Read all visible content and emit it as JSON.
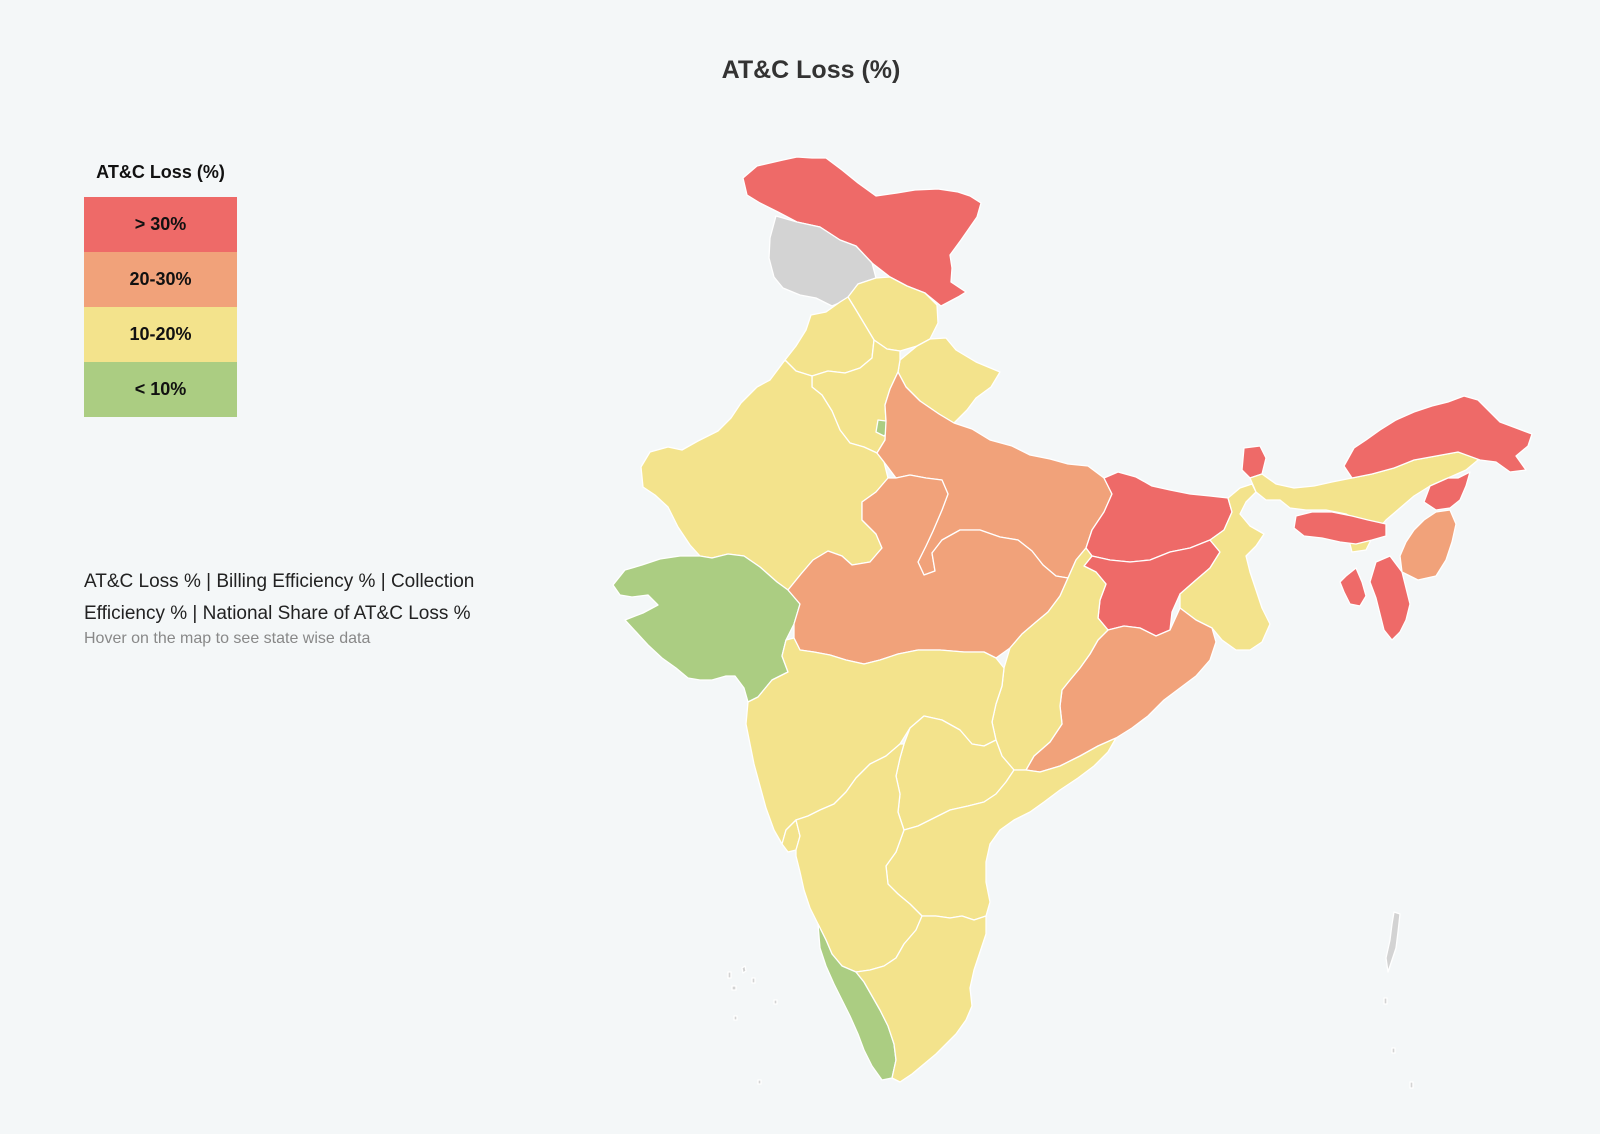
{
  "title": "AT&C Loss (%)",
  "legend": {
    "title": "AT&C Loss (%)",
    "items": [
      {
        "label": "> 30%",
        "color": "#ee6a68"
      },
      {
        "label": "20-30%",
        "color": "#f1a27a"
      },
      {
        "label": "10-20%",
        "color": "#f3e38c"
      },
      {
        "label": "< 10%",
        "color": "#abcd82"
      }
    ]
  },
  "info": {
    "metrics": "AT&C Loss % | Billing Efficiency % | Collection Efficiency % | National Share of AT&C Loss %",
    "hint": "Hover on the map to see state wise data"
  },
  "map": {
    "regions": [
      {
        "name": "Jammu & Kashmir",
        "category": "> 30%",
        "color": "#ee6a68"
      },
      {
        "name": "Ladakh (disputed)",
        "category": "no data",
        "color": "#d3d3d3"
      },
      {
        "name": "Punjab",
        "category": "10-20%",
        "color": "#f3e38c"
      },
      {
        "name": "Himachal Pradesh",
        "category": "10-20%",
        "color": "#f3e38c"
      },
      {
        "name": "Uttarakhand",
        "category": "10-20%",
        "color": "#f3e38c"
      },
      {
        "name": "Haryana",
        "category": "10-20%",
        "color": "#f3e38c"
      },
      {
        "name": "Delhi",
        "category": "< 10%",
        "color": "#abcd82"
      },
      {
        "name": "Rajasthan",
        "category": "10-20%",
        "color": "#f3e38c"
      },
      {
        "name": "Uttar Pradesh",
        "category": "20-30%",
        "color": "#f1a27a"
      },
      {
        "name": "Bihar",
        "category": "> 30%",
        "color": "#ee6a68"
      },
      {
        "name": "Sikkim",
        "category": "> 30%",
        "color": "#ee6a68"
      },
      {
        "name": "Arunachal Pradesh",
        "category": "> 30%",
        "color": "#ee6a68"
      },
      {
        "name": "Assam",
        "category": "10-20%",
        "color": "#f3e38c"
      },
      {
        "name": "Nagaland",
        "category": "> 30%",
        "color": "#ee6a68"
      },
      {
        "name": "Meghalaya",
        "category": "> 30%",
        "color": "#ee6a68"
      },
      {
        "name": "Manipur",
        "category": "20-30%",
        "color": "#f1a27a"
      },
      {
        "name": "Mizoram",
        "category": "> 30%",
        "color": "#ee6a68"
      },
      {
        "name": "Tripura",
        "category": "> 30%",
        "color": "#ee6a68"
      },
      {
        "name": "West Bengal",
        "category": "10-20%",
        "color": "#f3e38c"
      },
      {
        "name": "Jharkhand",
        "category": "> 30%",
        "color": "#ee6a68"
      },
      {
        "name": "Gujarat",
        "category": "< 10%",
        "color": "#abcd82"
      },
      {
        "name": "Madhya Pradesh",
        "category": "20-30%",
        "color": "#f1a27a"
      },
      {
        "name": "Chhattisgarh",
        "category": "10-20%",
        "color": "#f3e38c"
      },
      {
        "name": "Odisha",
        "category": "20-30%",
        "color": "#f1a27a"
      },
      {
        "name": "Maharashtra",
        "category": "10-20%",
        "color": "#f3e38c"
      },
      {
        "name": "Telangana",
        "category": "10-20%",
        "color": "#f3e38c"
      },
      {
        "name": "Andhra Pradesh",
        "category": "10-20%",
        "color": "#f3e38c"
      },
      {
        "name": "Goa",
        "category": "10-20%",
        "color": "#f3e38c"
      },
      {
        "name": "Karnataka",
        "category": "10-20%",
        "color": "#f3e38c"
      },
      {
        "name": "Kerala",
        "category": "< 10%",
        "color": "#abcd82"
      },
      {
        "name": "Tamil Nadu",
        "category": "10-20%",
        "color": "#f3e38c"
      },
      {
        "name": "Lakshadweep",
        "category": "no data",
        "color": "#d3d3d3"
      },
      {
        "name": "Andaman & Nicobar Islands",
        "category": "no data",
        "color": "#d3d3d3"
      }
    ]
  }
}
